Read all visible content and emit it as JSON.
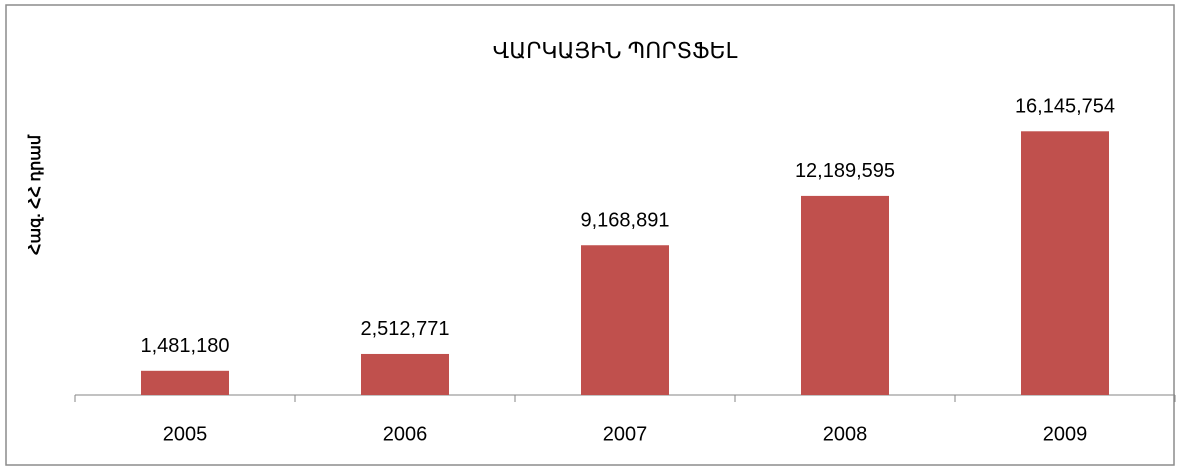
{
  "chart_data": {
    "type": "bar",
    "title": "ՎԱՐԿԱՅԻՆ ՊՈՐՏՖԵԼ",
    "y_label": "Հազ. ՀՀ դրամ",
    "categories": [
      "2005",
      "2006",
      "2007",
      "2008",
      "2009"
    ],
    "values": [
      1481180,
      2512771,
      9168891,
      12189595,
      16145754
    ],
    "value_labels": [
      "1,481,180",
      "2,512,771",
      "9,168,891",
      "12,189,595",
      "16,145,754"
    ],
    "color": "#c0504d",
    "ylim": [
      0,
      18000000
    ],
    "grid": false
  }
}
